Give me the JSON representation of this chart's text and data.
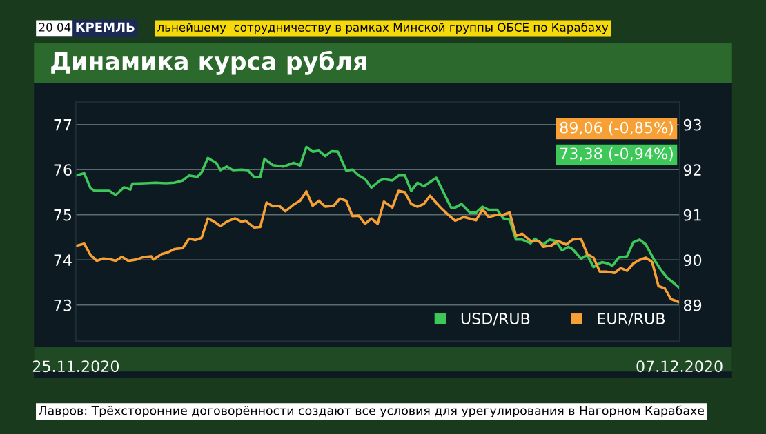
{
  "chart_data": {
    "type": "line",
    "title": "Динамика курса рубля",
    "annotations": [
      "20 04",
      "КРЕМЛЬ",
      "льнейшему  сотрудничеству в рамках Минской группы ОБСЕ по Карабаху",
      "Лавров: Трёхсторонние договорённости создают все условия для урегулирования в Нагорном Карабахе",
      "89,06 (-0,85%)",
      "73,38 (-0,94%)"
    ],
    "xlim": [
      "2020-11-25",
      "2020-12-07"
    ],
    "xticks": [
      {
        "value": "2020-11-25",
        "label": "25.11.2020"
      },
      {
        "value": "2020-12-07",
        "label": "07.12.2020"
      }
    ],
    "ylim": [
      72.2,
      77.5
    ],
    "yticks": [
      73,
      74,
      75,
      76,
      77
    ],
    "y2lim": [
      88.2,
      93.5
    ],
    "y2ticks": [
      89,
      90,
      91,
      92,
      93
    ],
    "grid": "y",
    "legend": "bottom right",
    "line_style": "solid",
    "marker": "none",
    "series": [
      {
        "name": "USD/RUB",
        "color": "#3ec85a",
        "axis": "y",
        "x": [
          "2020-11-25T00:00",
          "2020-11-25T04:00",
          "2020-11-25T07:00",
          "2020-11-25T09:00",
          "2020-11-25T16:00",
          "2020-11-25T19:00",
          "2020-11-25T23:00",
          "2020-11-26T02:00",
          "2020-11-26T03:00",
          "2020-11-26T09:00",
          "2020-11-26T14:00",
          "2020-11-26T19:00",
          "2020-11-26T23:00",
          "2020-11-27T03:00",
          "2020-11-27T06:00",
          "2020-11-27T10:00",
          "2020-11-27T12:00",
          "2020-11-27T15:00",
          "2020-11-27T19:00",
          "2020-11-27T21:00",
          "2020-11-28T00:00",
          "2020-11-28T03:00",
          "2020-11-28T07:00",
          "2020-11-28T10:00",
          "2020-11-28T13:00",
          "2020-11-28T16:00",
          "2020-11-28T18:00",
          "2020-11-28T22:00",
          "2020-11-29T03:00",
          "2020-11-29T08:00",
          "2020-11-29T11:00",
          "2020-11-29T14:00",
          "2020-11-29T17:00",
          "2020-11-29T20:00",
          "2020-11-29T23:00",
          "2020-11-30T02:00",
          "2020-11-30T05:00",
          "2020-11-30T09:00",
          "2020-11-30T12:00",
          "2020-11-30T15:00",
          "2020-11-30T18:00",
          "2020-11-30T21:00",
          "2020-12-01T01:00",
          "2020-12-01T03:00",
          "2020-12-01T07:00",
          "2020-12-01T10:00",
          "2020-12-01T13:00",
          "2020-12-01T16:00",
          "2020-12-01T19:00",
          "2020-12-01T22:00",
          "2020-12-02T04:00",
          "2020-12-02T11:00",
          "2020-12-02T13:00",
          "2020-12-02T16:00",
          "2020-12-02T20:00",
          "2020-12-02T23:00",
          "2020-12-03T02:00",
          "2020-12-03T05:00",
          "2020-12-03T09:00",
          "2020-12-03T12:00",
          "2020-12-03T15:00",
          "2020-12-03T18:00",
          "2020-12-03T21:00",
          "2020-12-04T01:00",
          "2020-12-04T03:00",
          "2020-12-04T07:00",
          "2020-12-04T10:00",
          "2020-12-04T13:00",
          "2020-12-04T16:00",
          "2020-12-04T19:00",
          "2020-12-04T21:00",
          "2020-12-05T01:00",
          "2020-12-05T04:00",
          "2020-12-05T07:00",
          "2020-12-05T11:00",
          "2020-12-05T14:00",
          "2020-12-05T16:00",
          "2020-12-05T19:00",
          "2020-12-05T23:00",
          "2020-12-06T02:00",
          "2020-12-06T05:00",
          "2020-12-06T08:00",
          "2020-12-06T12:00",
          "2020-12-06T15:00",
          "2020-12-06T18:00",
          "2020-12-06T21:00",
          "2020-12-07T00:00"
        ],
        "values": [
          75.87,
          75.92,
          75.59,
          75.53,
          75.53,
          75.44,
          75.61,
          75.56,
          75.69,
          75.7,
          75.71,
          75.7,
          75.71,
          75.76,
          75.87,
          75.84,
          75.94,
          76.26,
          76.15,
          75.99,
          76.07,
          75.99,
          76.0,
          75.99,
          75.84,
          75.84,
          76.24,
          76.1,
          76.07,
          76.15,
          76.09,
          76.5,
          76.4,
          76.42,
          76.3,
          76.41,
          76.4,
          75.98,
          76.0,
          75.87,
          75.79,
          75.6,
          75.76,
          75.79,
          75.76,
          75.87,
          75.87,
          75.53,
          75.71,
          75.63,
          75.82,
          75.16,
          75.16,
          75.24,
          75.05,
          75.05,
          75.18,
          75.11,
          75.11,
          74.92,
          74.89,
          74.45,
          74.45,
          74.37,
          74.47,
          74.34,
          74.45,
          74.42,
          74.21,
          74.29,
          74.24,
          74.03,
          74.11,
          73.84,
          73.95,
          73.92,
          73.87,
          74.05,
          74.08,
          74.39,
          74.45,
          74.34,
          74.0,
          73.79,
          73.61,
          73.5,
          73.38
        ]
      },
      {
        "name": "EUR/RUB",
        "color": "#f7a035",
        "axis": "y2",
        "x": [
          "2020-11-25T00:00",
          "2020-11-25T04:00",
          "2020-11-25T07:00",
          "2020-11-25T10:00",
          "2020-11-25T13:00",
          "2020-11-25T16:00",
          "2020-11-25T19:00",
          "2020-11-25T22:00",
          "2020-11-26T01:00",
          "2020-11-26T05:00",
          "2020-11-26T08:00",
          "2020-11-26T12:00",
          "2020-11-26T13:00",
          "2020-11-26T17:00",
          "2020-11-26T20:00",
          "2020-11-26T23:00",
          "2020-11-27T03:00",
          "2020-11-27T06:00",
          "2020-11-27T09:00",
          "2020-11-27T12:00",
          "2020-11-27T15:00",
          "2020-11-27T18:00",
          "2020-11-27T21:00",
          "2020-11-28T00:00",
          "2020-11-28T04:00",
          "2020-11-28T07:00",
          "2020-11-28T09:00",
          "2020-11-28T13:00",
          "2020-11-28T16:00",
          "2020-11-28T19:00",
          "2020-11-28T22:00",
          "2020-11-29T01:00",
          "2020-11-29T04:00",
          "2020-11-29T08:00",
          "2020-11-29T11:00",
          "2020-11-29T14:00",
          "2020-11-29T17:00",
          "2020-11-29T20:00",
          "2020-11-29T23:00",
          "2020-11-30T03:00",
          "2020-11-30T06:00",
          "2020-11-30T09:00",
          "2020-11-30T12:00",
          "2020-11-30T15:00",
          "2020-11-30T18:00",
          "2020-11-30T21:00",
          "2020-12-01T00:00",
          "2020-12-01T03:00",
          "2020-12-01T07:00",
          "2020-12-01T10:00",
          "2020-12-01T13:00",
          "2020-12-01T16:00",
          "2020-12-01T19:00",
          "2020-12-01T22:00",
          "2020-12-02T01:00",
          "2020-12-02T06:00",
          "2020-12-02T09:00",
          "2020-12-02T13:00",
          "2020-12-02T17:00",
          "2020-12-02T23:00",
          "2020-12-03T02:00",
          "2020-12-03T05:00",
          "2020-12-03T09:00",
          "2020-12-03T12:00",
          "2020-12-03T15:00",
          "2020-12-03T18:00",
          "2020-12-03T21:00",
          "2020-12-04T01:00",
          "2020-12-04T05:00",
          "2020-12-04T07:00",
          "2020-12-04T11:00",
          "2020-12-04T14:00",
          "2020-12-04T18:00",
          "2020-12-04T21:00",
          "2020-12-05T01:00",
          "2020-12-05T04:00",
          "2020-12-05T07:00",
          "2020-12-05T10:00",
          "2020-12-05T13:00",
          "2020-12-05T17:00",
          "2020-12-05T20:00",
          "2020-12-05T23:00",
          "2020-12-06T02:00",
          "2020-12-06T05:00",
          "2020-12-06T08:00",
          "2020-12-06T11:00",
          "2020-12-06T14:00",
          "2020-12-06T17:00",
          "2020-12-06T20:00",
          "2020-12-07T00:00"
        ],
        "values": [
          90.31,
          90.36,
          90.11,
          89.98,
          90.03,
          90.02,
          89.98,
          90.07,
          89.98,
          90.01,
          90.06,
          90.08,
          90.01,
          90.13,
          90.17,
          90.24,
          90.26,
          90.47,
          90.44,
          90.49,
          90.92,
          90.85,
          90.75,
          90.85,
          90.92,
          90.85,
          90.87,
          90.72,
          90.73,
          91.27,
          91.19,
          91.2,
          91.08,
          91.23,
          91.31,
          91.52,
          91.2,
          91.31,
          91.18,
          91.2,
          91.36,
          91.31,
          90.97,
          90.98,
          90.8,
          90.92,
          90.8,
          91.29,
          91.16,
          91.53,
          91.5,
          91.24,
          91.18,
          91.24,
          91.42,
          91.16,
          91.03,
          90.87,
          90.95,
          90.88,
          91.12,
          90.95,
          91.0,
          91.0,
          91.05,
          90.53,
          90.58,
          90.42,
          90.42,
          90.29,
          90.32,
          90.42,
          90.34,
          90.45,
          90.47,
          90.13,
          90.05,
          89.74,
          89.74,
          89.71,
          89.82,
          89.76,
          89.92,
          90.0,
          90.05,
          89.95,
          89.42,
          89.37,
          89.13,
          89.06
        ]
      }
    ]
  }
}
